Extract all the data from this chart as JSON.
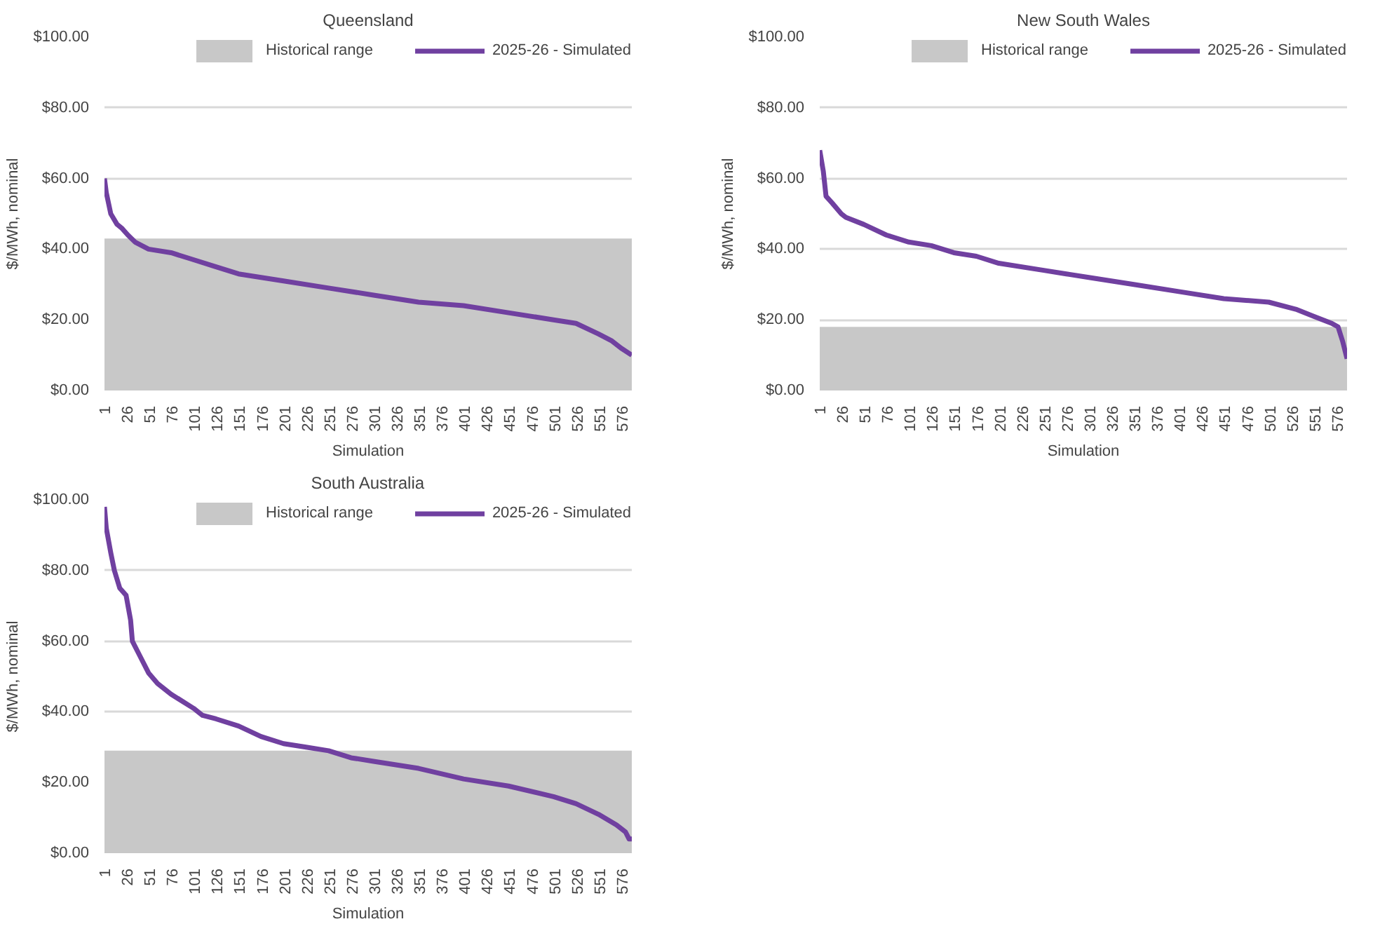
{
  "chart_data": [
    {
      "type": "line",
      "title": "Queensland",
      "xlabel": "Simulation",
      "ylabel": "$/MWh, nominal",
      "xlim": [
        1,
        587
      ],
      "xticks": [
        1,
        26,
        51,
        76,
        101,
        126,
        151,
        176,
        201,
        226,
        251,
        276,
        301,
        326,
        351,
        376,
        401,
        426,
        451,
        476,
        501,
        526,
        551,
        576
      ],
      "ylim": [
        0,
        100
      ],
      "yticks": [
        {
          "value": 0,
          "label": "$0.00"
        },
        {
          "value": 20,
          "label": "$20.00"
        },
        {
          "value": 40,
          "label": "$40.00"
        },
        {
          "value": 60,
          "label": "$60.00"
        },
        {
          "value": 80,
          "label": "$80.00"
        },
        {
          "value": 100,
          "label": "$100.00"
        }
      ],
      "grid": "y",
      "legend": "top right",
      "bands": [
        {
          "axis": "y",
          "from": 0,
          "to": 43,
          "label": "Historical range",
          "color": "#c8c8c8"
        }
      ],
      "series": [
        {
          "name": "2025-26 - Simulated",
          "color": "#7040a0",
          "x": [
            1,
            3,
            8,
            15,
            20,
            27,
            35,
            50,
            75,
            100,
            125,
            150,
            175,
            200,
            250,
            300,
            350,
            400,
            450,
            500,
            525,
            550,
            565,
            575,
            587
          ],
          "values": [
            60,
            56,
            50,
            47,
            46,
            44,
            42,
            40,
            39,
            37,
            35,
            33,
            32,
            31,
            29,
            27,
            25,
            24,
            22,
            20,
            19,
            16,
            14,
            12,
            10
          ]
        }
      ]
    },
    {
      "type": "line",
      "title": "New South Wales",
      "xlabel": "Simulation",
      "ylabel": "$/MWh, nominal",
      "xlim": [
        1,
        587
      ],
      "xticks": [
        1,
        26,
        51,
        76,
        101,
        126,
        151,
        176,
        201,
        226,
        251,
        276,
        301,
        326,
        351,
        376,
        401,
        426,
        451,
        476,
        501,
        526,
        551,
        576
      ],
      "ylim": [
        0,
        100
      ],
      "yticks": [
        {
          "value": 0,
          "label": "$0.00"
        },
        {
          "value": 20,
          "label": "$20.00"
        },
        {
          "value": 40,
          "label": "$40.00"
        },
        {
          "value": 60,
          "label": "$60.00"
        },
        {
          "value": 80,
          "label": "$80.00"
        },
        {
          "value": 100,
          "label": "$100.00"
        }
      ],
      "grid": "y",
      "legend": "top right",
      "bands": [
        {
          "axis": "y",
          "from": 0,
          "to": 18,
          "label": "Historical range",
          "color": "#c8c8c8"
        }
      ],
      "series": [
        {
          "name": "2025-26 - Simulated",
          "color": "#7040a0",
          "x": [
            1,
            5,
            8,
            15,
            25,
            30,
            50,
            75,
            100,
            125,
            150,
            175,
            200,
            250,
            275,
            300,
            350,
            400,
            450,
            500,
            530,
            550,
            570,
            577,
            582,
            587
          ],
          "values": [
            68,
            62,
            55,
            53,
            50,
            49,
            47,
            44,
            42,
            41,
            39,
            38,
            36,
            34,
            33,
            32,
            30,
            28,
            26,
            25,
            23,
            21,
            19,
            18,
            14,
            9
          ]
        }
      ]
    },
    {
      "type": "line",
      "title": "South Australia",
      "xlabel": "Simulation",
      "ylabel": "$/MWh, nominal",
      "xlim": [
        1,
        587
      ],
      "xticks": [
        1,
        26,
        51,
        76,
        101,
        126,
        151,
        176,
        201,
        226,
        251,
        276,
        301,
        326,
        351,
        376,
        401,
        426,
        451,
        476,
        501,
        526,
        551,
        576
      ],
      "ylim": [
        0,
        100
      ],
      "yticks": [
        {
          "value": 0,
          "label": "$0.00"
        },
        {
          "value": 20,
          "label": "$20.00"
        },
        {
          "value": 40,
          "label": "$40.00"
        },
        {
          "value": 60,
          "label": "$60.00"
        },
        {
          "value": 80,
          "label": "$80.00"
        },
        {
          "value": 100,
          "label": "$100.00"
        }
      ],
      "grid": "y",
      "legend": "top right",
      "bands": [
        {
          "axis": "y",
          "from": 0,
          "to": 29,
          "label": "Historical range",
          "color": "#c8c8c8"
        }
      ],
      "series": [
        {
          "name": "2025-26 - Simulated",
          "color": "#7040a0",
          "x": [
            1,
            3,
            8,
            12,
            18,
            25,
            30,
            32,
            40,
            50,
            60,
            75,
            100,
            110,
            125,
            150,
            175,
            200,
            225,
            250,
            275,
            300,
            350,
            400,
            450,
            500,
            525,
            550,
            570,
            580,
            584,
            587
          ],
          "values": [
            98,
            92,
            85,
            80,
            75,
            73,
            66,
            60,
            56,
            51,
            48,
            45,
            41,
            39,
            38,
            36,
            33,
            31,
            30,
            29,
            27,
            26,
            24,
            21,
            19,
            16,
            14,
            11,
            8,
            6,
            4,
            4
          ]
        }
      ]
    }
  ]
}
